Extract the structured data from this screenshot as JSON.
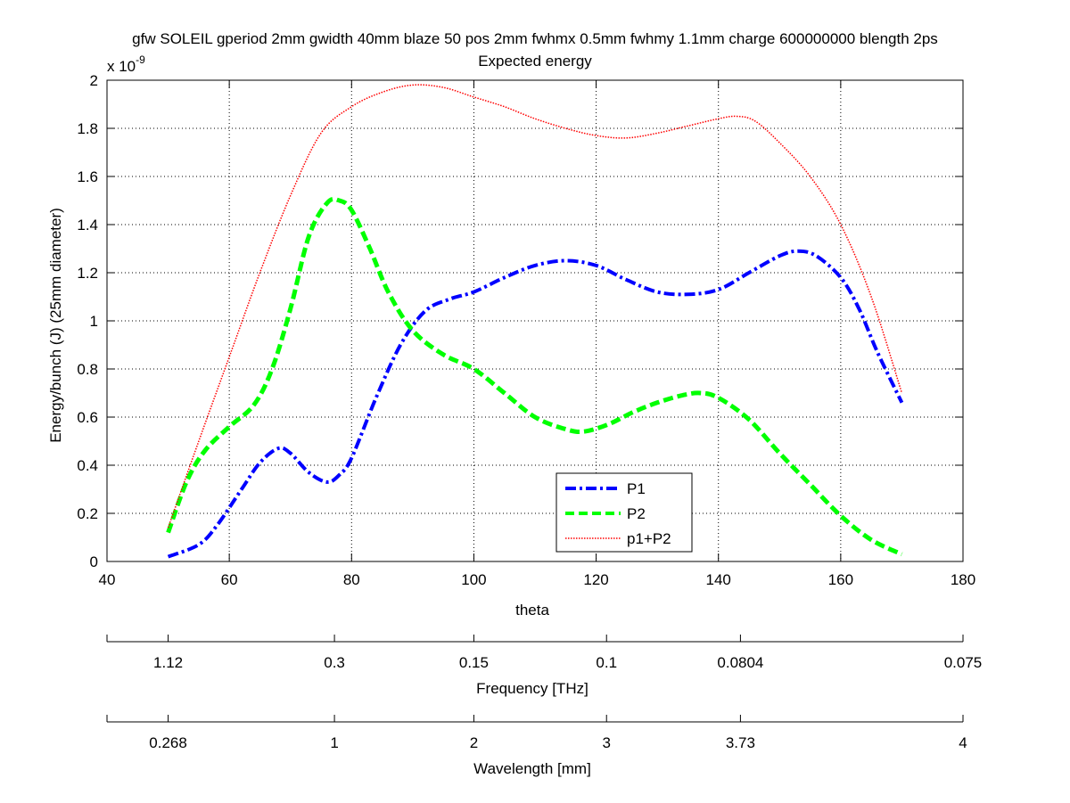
{
  "chart_data": {
    "type": "line",
    "title_line1": "gfw SOLEIL gperiod 2mm gwidth 40mm blaze 50 pos 2mm fwhmx 0.5mm fwhmy 1.1mm charge 600000000 blength 2ps",
    "title_line2": "Expected energy",
    "xlabel": "theta",
    "ylabel": "Energy/bunch (J) (25mm diameter)",
    "y_multiplier": "x 10",
    "y_exponent": "-9",
    "xlim": [
      40,
      180
    ],
    "ylim": [
      0,
      2
    ],
    "x_ticks": [
      40,
      60,
      80,
      100,
      120,
      140,
      160,
      180
    ],
    "y_ticks": [
      0,
      0.2,
      0.4,
      0.6,
      0.8,
      1,
      1.2,
      1.4,
      1.6,
      1.8,
      2
    ],
    "grid": true,
    "legend_position": "bottom-center",
    "series": [
      {
        "name": "P1",
        "color": "#0000ff",
        "style": "dash-dot",
        "x": [
          50,
          55,
          58,
          62,
          65,
          68,
          70,
          73,
          76,
          78,
          80,
          84,
          88,
          92,
          96,
          100,
          105,
          110,
          115,
          120,
          125,
          130,
          135,
          140,
          145,
          150,
          153,
          156,
          160,
          163,
          166,
          170
        ],
        "y": [
          0.02,
          0.07,
          0.15,
          0.3,
          0.41,
          0.47,
          0.45,
          0.37,
          0.33,
          0.36,
          0.43,
          0.68,
          0.9,
          1.04,
          1.09,
          1.12,
          1.18,
          1.23,
          1.25,
          1.23,
          1.17,
          1.12,
          1.11,
          1.13,
          1.2,
          1.27,
          1.29,
          1.27,
          1.18,
          1.05,
          0.87,
          0.66
        ]
      },
      {
        "name": "P2",
        "color": "#00ff00",
        "style": "dashed",
        "x": [
          50,
          53,
          56,
          60,
          64,
          67,
          70,
          73,
          76,
          78,
          80,
          83,
          86,
          90,
          95,
          100,
          105,
          110,
          115,
          118,
          122,
          126,
          130,
          134,
          137,
          140,
          145,
          150,
          155,
          160,
          165,
          170
        ],
        "y": [
          0.12,
          0.33,
          0.46,
          0.56,
          0.65,
          0.8,
          1.05,
          1.35,
          1.49,
          1.5,
          1.46,
          1.3,
          1.12,
          0.96,
          0.86,
          0.8,
          0.7,
          0.6,
          0.55,
          0.54,
          0.57,
          0.62,
          0.66,
          0.69,
          0.7,
          0.68,
          0.59,
          0.45,
          0.32,
          0.19,
          0.09,
          0.03
        ]
      },
      {
        "name": "p1+P2",
        "color": "#ff0000",
        "style": "dotted",
        "x": [
          50,
          55,
          60,
          65,
          70,
          75,
          80,
          85,
          90,
          95,
          100,
          105,
          110,
          115,
          120,
          125,
          130,
          135,
          140,
          143,
          146,
          150,
          155,
          160,
          165,
          170
        ],
        "y": [
          0.14,
          0.5,
          0.85,
          1.2,
          1.52,
          1.78,
          1.89,
          1.95,
          1.98,
          1.97,
          1.93,
          1.89,
          1.84,
          1.8,
          1.77,
          1.76,
          1.78,
          1.81,
          1.84,
          1.85,
          1.83,
          1.74,
          1.6,
          1.4,
          1.1,
          0.7
        ]
      }
    ],
    "secondary_axes": [
      {
        "label": "Frequency [THz]",
        "tick_positions_theta": [
          50,
          77.2,
          100,
          121.7,
          143.6,
          180
        ],
        "tick_labels": [
          "1.12",
          "0.3",
          "0.15",
          "0.1",
          "0.0804",
          "0.075"
        ]
      },
      {
        "label": "Wavelength [mm]",
        "tick_positions_theta": [
          50,
          77.2,
          100,
          121.7,
          143.6,
          180
        ],
        "tick_labels": [
          "0.268",
          "1",
          "2",
          "3",
          "3.73",
          "4"
        ]
      }
    ]
  }
}
